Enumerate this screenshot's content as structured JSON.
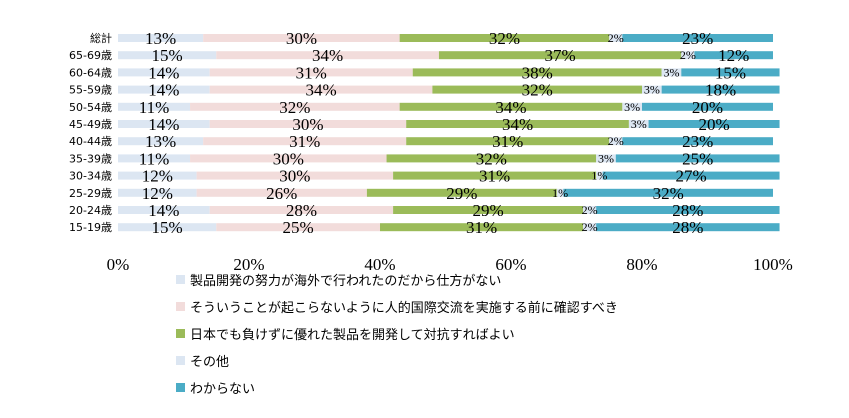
{
  "chart_data": {
    "type": "bar",
    "orientation": "horizontal",
    "stacked": "percent",
    "categories": [
      "総計",
      "65-69歳",
      "60-64歳",
      "55-59歳",
      "50-54歳",
      "45-49歳",
      "40-44歳",
      "35-39歳",
      "30-34歳",
      "25-29歳",
      "20-24歳",
      "15-19歳"
    ],
    "series": [
      {
        "name": "製品開発の努力が海外で行われたのだから仕方がない",
        "color": "#dce6f2",
        "values": [
          13,
          15,
          14,
          14,
          11,
          14,
          13,
          11,
          12,
          12,
          14,
          15
        ],
        "labels": [
          "13%",
          "15%",
          "14%",
          "14%",
          "11%",
          "14%",
          "13%",
          "11%",
          "12%",
          "12%",
          "14%",
          "15%"
        ]
      },
      {
        "name": "そういうことが起こらないように人的国際交流を実施する前に確認すべき",
        "color": "#f2dcdb",
        "values": [
          30,
          34,
          31,
          34,
          32,
          30,
          31,
          30,
          30,
          26,
          28,
          25
        ],
        "labels": [
          "30%",
          "34%",
          "31%",
          "34%",
          "32%",
          "30%",
          "31%",
          "30%",
          "30%",
          "26%",
          "28%",
          "25%"
        ]
      },
      {
        "name": "日本でも負けずに優れた製品を開発して対抗すればよい",
        "color": "#9bbb59",
        "values": [
          32,
          37,
          38,
          32,
          34,
          34,
          31,
          32,
          31,
          29,
          29,
          31
        ],
        "labels": [
          "32%",
          "37%",
          "38%",
          "32%",
          "34%",
          "34%",
          "31%",
          "32%",
          "31%",
          "29%",
          "29%",
          "31%"
        ]
      },
      {
        "name": "その他",
        "color": "#dce6f2",
        "values": [
          2,
          2,
          3,
          3,
          3,
          3,
          2,
          3,
          1,
          1,
          2,
          2
        ],
        "labels": [
          "2%",
          "2%",
          "3%",
          "3%",
          "3%",
          "3%",
          "2%",
          "3%",
          "1%",
          "1%",
          "2%",
          "2%"
        ]
      },
      {
        "name": "わからない",
        "color": "#4bacc6",
        "values": [
          23,
          12,
          15,
          18,
          20,
          20,
          23,
          25,
          27,
          32,
          28,
          28
        ],
        "labels": [
          "23%",
          "12%",
          "15%",
          "18%",
          "20%",
          "20%",
          "23%",
          "25%",
          "27%",
          "32%",
          "28%",
          "28%"
        ]
      }
    ],
    "x_ticks": [
      "0%",
      "20%",
      "40%",
      "60%",
      "80%",
      "100%"
    ],
    "xlim": [
      0,
      100
    ],
    "grid": false,
    "legend_position": "bottom"
  }
}
